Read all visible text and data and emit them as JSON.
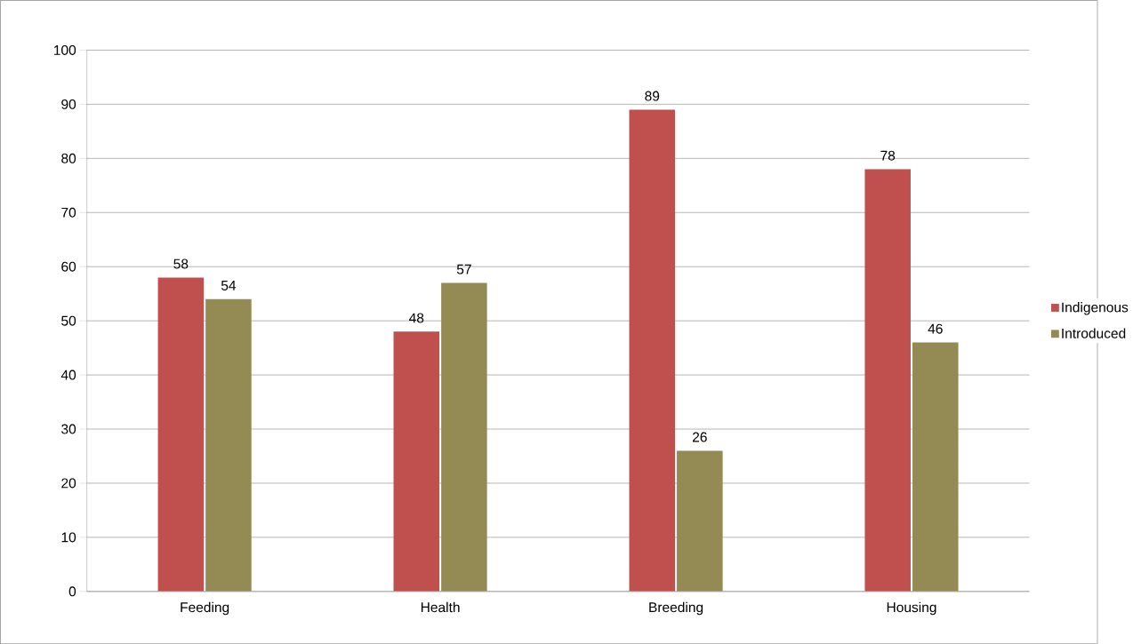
{
  "chart_data": {
    "type": "bar",
    "categories": [
      "Feeding",
      "Health",
      "Breeding",
      "Housing"
    ],
    "series": [
      {
        "name": "Indigenous",
        "color": "#c0504d",
        "values": [
          58,
          48,
          89,
          78
        ]
      },
      {
        "name": "Introduced",
        "color": "#948a54",
        "values": [
          54,
          57,
          26,
          46
        ]
      }
    ],
    "ylim": [
      0,
      100
    ],
    "yticks": [
      0,
      10,
      20,
      30,
      40,
      50,
      60,
      70,
      80,
      90,
      100
    ],
    "grid": "y",
    "legend": "right",
    "data_labels": true
  }
}
